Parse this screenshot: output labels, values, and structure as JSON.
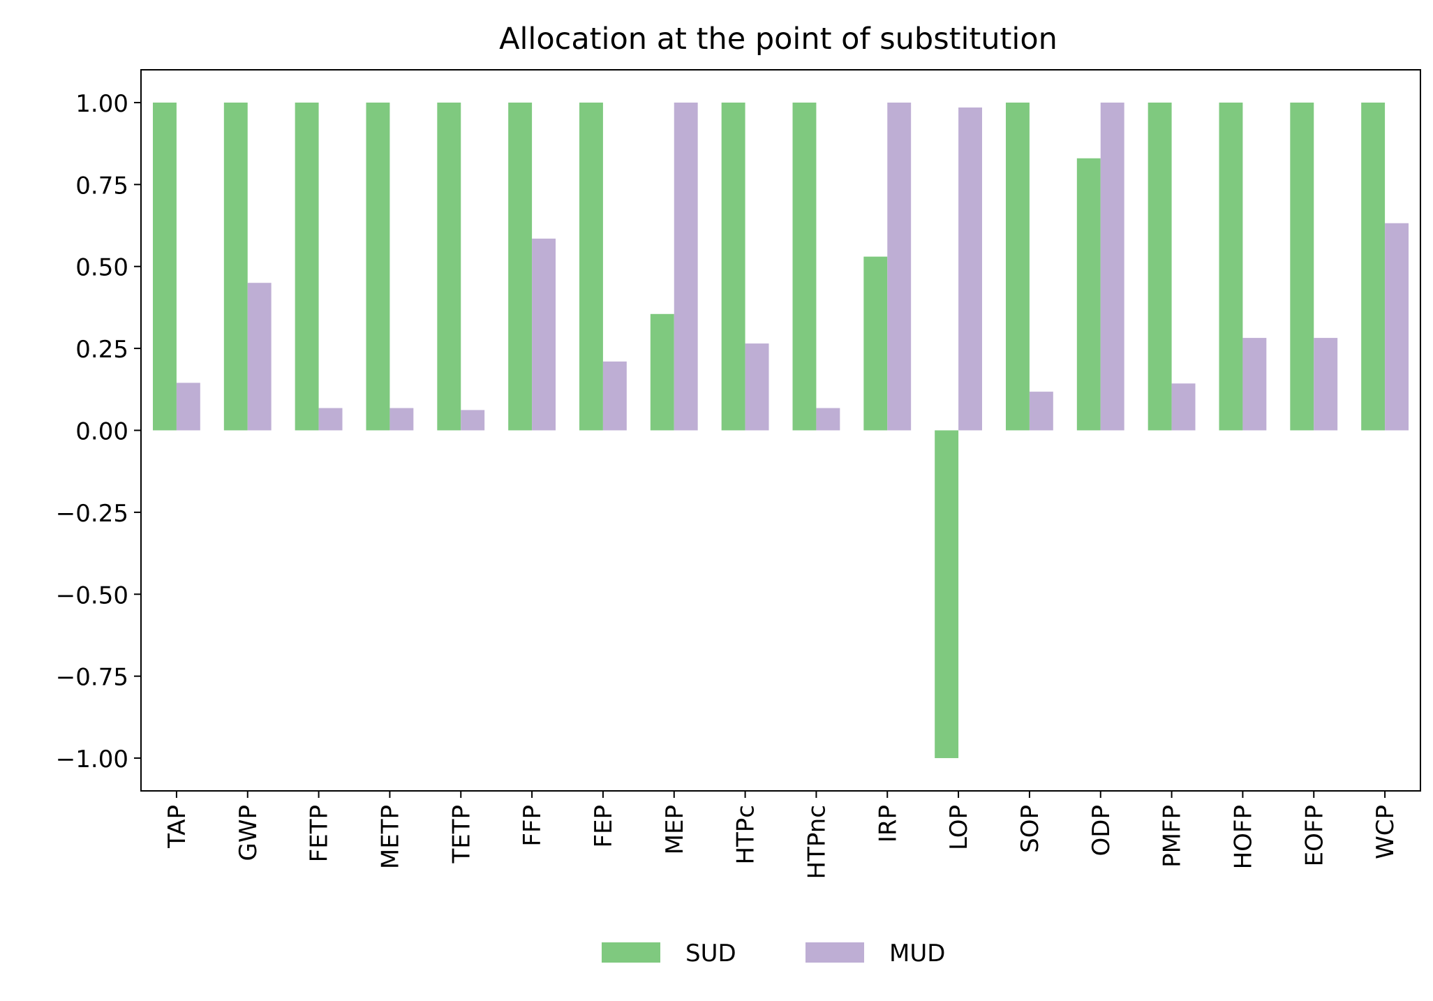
{
  "chart_data": {
    "type": "bar",
    "title": "Allocation at the point of substitution",
    "xlabel": "",
    "ylabel": "",
    "categories": [
      "TAP",
      "GWP",
      "FETP",
      "METP",
      "TETP",
      "FFP",
      "FEP",
      "MEP",
      "HTPc",
      "HTPnc",
      "IRP",
      "LOP",
      "SOP",
      "ODP",
      "PMFP",
      "HOFP",
      "EOFP",
      "WCP"
    ],
    "series": [
      {
        "name": "SUD",
        "color": "#7fc97f",
        "values": [
          1.0,
          1.0,
          1.0,
          1.0,
          1.0,
          1.0,
          1.0,
          0.355,
          1.0,
          1.0,
          0.53,
          -1.0,
          1.0,
          0.83,
          1.0,
          1.0,
          1.0,
          1.0
        ]
      },
      {
        "name": "MUD",
        "color": "#beaed4",
        "values": [
          0.145,
          0.45,
          0.068,
          0.068,
          0.062,
          0.585,
          0.21,
          1.0,
          0.265,
          0.068,
          1.0,
          0.985,
          0.118,
          1.0,
          0.143,
          0.282,
          0.282,
          0.632
        ]
      }
    ],
    "ylim": [
      -1.1,
      1.1
    ],
    "yticks": [
      1.0,
      0.75,
      0.5,
      0.25,
      0.0,
      -0.25,
      -0.5,
      -0.75,
      -1.0
    ],
    "ytick_labels": [
      "1.00",
      "0.75",
      "0.50",
      "0.25",
      "0.00",
      "−0.25",
      "−0.50",
      "−0.75",
      "−1.00"
    ],
    "grid": false,
    "legend_position": "bottom-center"
  }
}
